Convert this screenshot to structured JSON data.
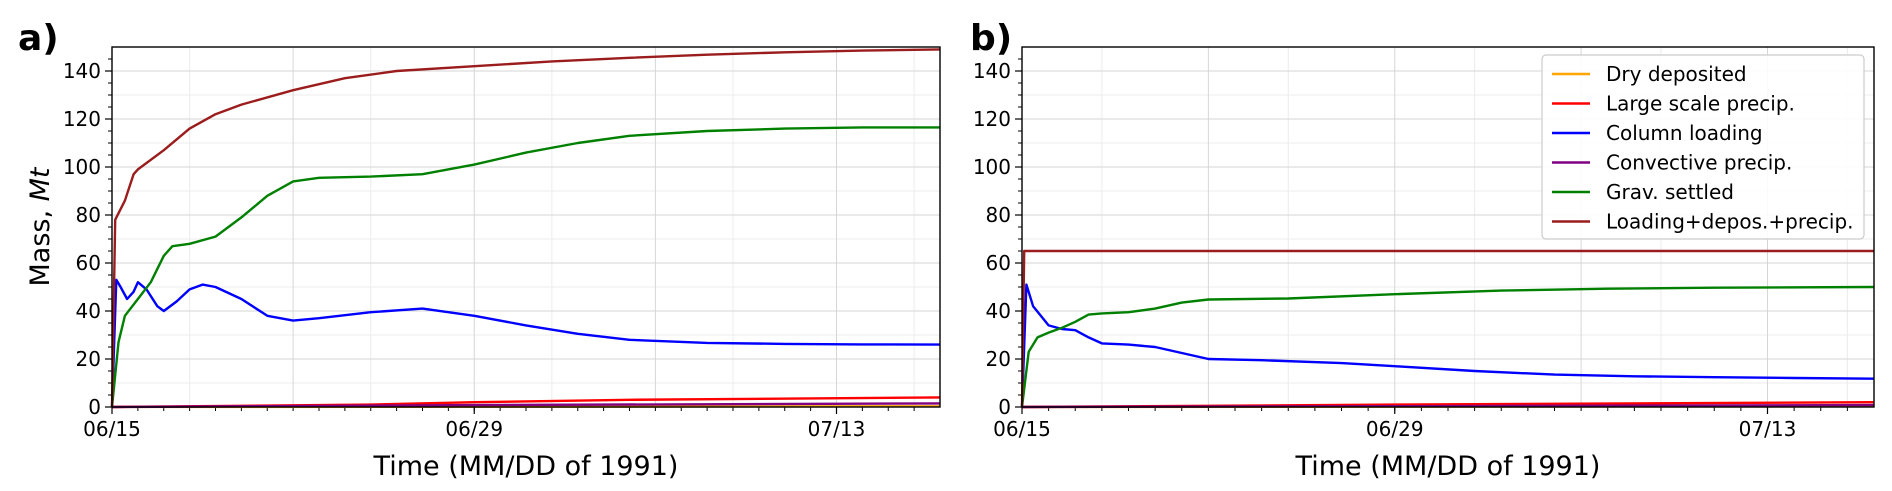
{
  "chart_data": [
    {
      "panel": "a)",
      "type": "line",
      "xlabel": "Time (MM/DD of 1991)",
      "ylabel": "Mass, ",
      "ylabel_unit": "Mt",
      "xlim": [
        "06/15",
        "07/17"
      ],
      "x_tick_labels": [
        "06/15",
        "06/29",
        "07/13"
      ],
      "ylim": [
        0,
        150
      ],
      "y_ticks": [
        0,
        20,
        40,
        60,
        80,
        100,
        120,
        140
      ],
      "grid": true,
      "series": [
        {
          "name": "Dry deposited",
          "color": "#ffa500",
          "points": [
            [
              "06/15",
              0
            ],
            [
              "07/17",
              0.3
            ]
          ]
        },
        {
          "name": "Large scale precip.",
          "color": "#ff0000",
          "points": [
            [
              "06/15",
              0
            ],
            [
              "06/20",
              0.5
            ],
            [
              "06/25",
              1.0
            ],
            [
              "06/29",
              2.0
            ],
            [
              "07/05",
              3.0
            ],
            [
              "07/17",
              4.0
            ]
          ]
        },
        {
          "name": "Column loading",
          "color": "#0000ff",
          "points": [
            [
              "06/15",
              0
            ],
            [
              "06/15 04:00",
              53
            ],
            [
              "06/15 08:00",
              50
            ],
            [
              "06/15 14:00",
              45
            ],
            [
              "06/15 20:00",
              48
            ],
            [
              "06/16",
              52
            ],
            [
              "06/16 08:00",
              49
            ],
            [
              "06/16 18:00",
              42
            ],
            [
              "06/17",
              40
            ],
            [
              "06/17 12:00",
              44
            ],
            [
              "06/18",
              49
            ],
            [
              "06/18 12:00",
              51
            ],
            [
              "06/19",
              50
            ],
            [
              "06/20",
              45
            ],
            [
              "06/21",
              38
            ],
            [
              "06/22",
              36
            ],
            [
              "06/23",
              37
            ],
            [
              "06/25",
              39.5
            ],
            [
              "06/27",
              41
            ],
            [
              "06/29",
              38
            ],
            [
              "07/01",
              34
            ],
            [
              "07/03",
              30.5
            ],
            [
              "07/05",
              28
            ],
            [
              "07/08",
              26.7
            ],
            [
              "07/11",
              26.3
            ],
            [
              "07/14",
              26.1
            ],
            [
              "07/17",
              26
            ]
          ]
        },
        {
          "name": "Convective precip.",
          "color": "#800080",
          "points": [
            [
              "06/15",
              0
            ],
            [
              "06/29",
              0.8
            ],
            [
              "07/17",
              1.5
            ]
          ]
        },
        {
          "name": "Grav. settled",
          "color": "#008000",
          "points": [
            [
              "06/15",
              0
            ],
            [
              "06/15 06:00",
              27
            ],
            [
              "06/15 12:00",
              38
            ],
            [
              "06/16",
              45
            ],
            [
              "06/16 12:00",
              52
            ],
            [
              "06/17",
              63
            ],
            [
              "06/17 08:00",
              67
            ],
            [
              "06/18",
              68
            ],
            [
              "06/19",
              71
            ],
            [
              "06/20",
              79
            ],
            [
              "06/21",
              88
            ],
            [
              "06/22",
              94
            ],
            [
              "06/23",
              95.5
            ],
            [
              "06/25",
              96
            ],
            [
              "06/27",
              97
            ],
            [
              "06/29",
              101
            ],
            [
              "07/01",
              106
            ],
            [
              "07/03",
              110
            ],
            [
              "07/05",
              113
            ],
            [
              "07/08",
              115
            ],
            [
              "07/11",
              116
            ],
            [
              "07/14",
              116.5
            ],
            [
              "07/17",
              116.5
            ]
          ]
        },
        {
          "name": "Loading+depos.+precip.",
          "color": "#9b1c1c",
          "points": [
            [
              "06/15",
              0
            ],
            [
              "06/15 03:00",
              78
            ],
            [
              "06/15 12:00",
              86
            ],
            [
              "06/15 20:00",
              97
            ],
            [
              "06/16",
              99
            ],
            [
              "06/17",
              107
            ],
            [
              "06/18",
              116
            ],
            [
              "06/19",
              122
            ],
            [
              "06/20",
              126
            ],
            [
              "06/22",
              132
            ],
            [
              "06/24",
              137
            ],
            [
              "06/26",
              140
            ],
            [
              "06/29",
              142
            ],
            [
              "07/02",
              144
            ],
            [
              "07/05",
              145.5
            ],
            [
              "07/08",
              146.8
            ],
            [
              "07/11",
              147.8
            ],
            [
              "07/14",
              148.5
            ],
            [
              "07/17",
              149
            ]
          ]
        }
      ]
    },
    {
      "panel": "b)",
      "type": "line",
      "xlabel": "Time (MM/DD of 1991)",
      "xlim": [
        "06/15",
        "07/17"
      ],
      "x_tick_labels": [
        "06/15",
        "06/29",
        "07/13"
      ],
      "ylim": [
        0,
        150
      ],
      "y_ticks": [
        0,
        20,
        40,
        60,
        80,
        100,
        120,
        140
      ],
      "grid": true,
      "legend_position": "top-right",
      "series": [
        {
          "name": "Dry deposited",
          "color": "#ffa500",
          "points": [
            [
              "06/15",
              0
            ],
            [
              "07/17",
              0.3
            ]
          ]
        },
        {
          "name": "Large scale precip.",
          "color": "#ff0000",
          "points": [
            [
              "06/15",
              0
            ],
            [
              "06/29",
              1.0
            ],
            [
              "07/17",
              2.0
            ]
          ]
        },
        {
          "name": "Column loading",
          "color": "#0000ff",
          "points": [
            [
              "06/15",
              0
            ],
            [
              "06/15 04:00",
              51
            ],
            [
              "06/15 10:00",
              42
            ],
            [
              "06/16",
              34
            ],
            [
              "06/16 12:00",
              32.5
            ],
            [
              "06/17",
              32
            ],
            [
              "06/17 12:00",
              29
            ],
            [
              "06/18",
              26.5
            ],
            [
              "06/19",
              26
            ],
            [
              "06/20",
              25
            ],
            [
              "06/21",
              22.5
            ],
            [
              "06/22",
              20
            ],
            [
              "06/24",
              19.5
            ],
            [
              "06/27",
              18.3
            ],
            [
              "06/29",
              17
            ],
            [
              "07/02",
              15
            ],
            [
              "07/05",
              13.5
            ],
            [
              "07/08",
              12.8
            ],
            [
              "07/11",
              12.4
            ],
            [
              "07/14",
              12.1
            ],
            [
              "07/17",
              11.8
            ]
          ]
        },
        {
          "name": "Convective precip.",
          "color": "#800080",
          "points": [
            [
              "06/15",
              0
            ],
            [
              "07/17",
              0.8
            ]
          ]
        },
        {
          "name": "Grav. settled",
          "color": "#008000",
          "points": [
            [
              "06/15",
              0
            ],
            [
              "06/15 06:00",
              23
            ],
            [
              "06/15 14:00",
              29
            ],
            [
              "06/16",
              31
            ],
            [
              "06/16 12:00",
              33
            ],
            [
              "06/17",
              35.5
            ],
            [
              "06/17 12:00",
              38.5
            ],
            [
              "06/18",
              39
            ],
            [
              "06/19",
              39.5
            ],
            [
              "06/20",
              41
            ],
            [
              "06/21",
              43.5
            ],
            [
              "06/22",
              44.8
            ],
            [
              "06/25",
              45.2
            ],
            [
              "06/29",
              47
            ],
            [
              "07/03",
              48.5
            ],
            [
              "07/07",
              49.3
            ],
            [
              "07/11",
              49.7
            ],
            [
              "07/17",
              50
            ]
          ]
        },
        {
          "name": "Loading+depos.+precip.",
          "color": "#9b1c1c",
          "points": [
            [
              "06/15",
              0
            ],
            [
              "06/15 02:00",
              65
            ],
            [
              "07/17",
              65
            ]
          ]
        }
      ]
    }
  ]
}
